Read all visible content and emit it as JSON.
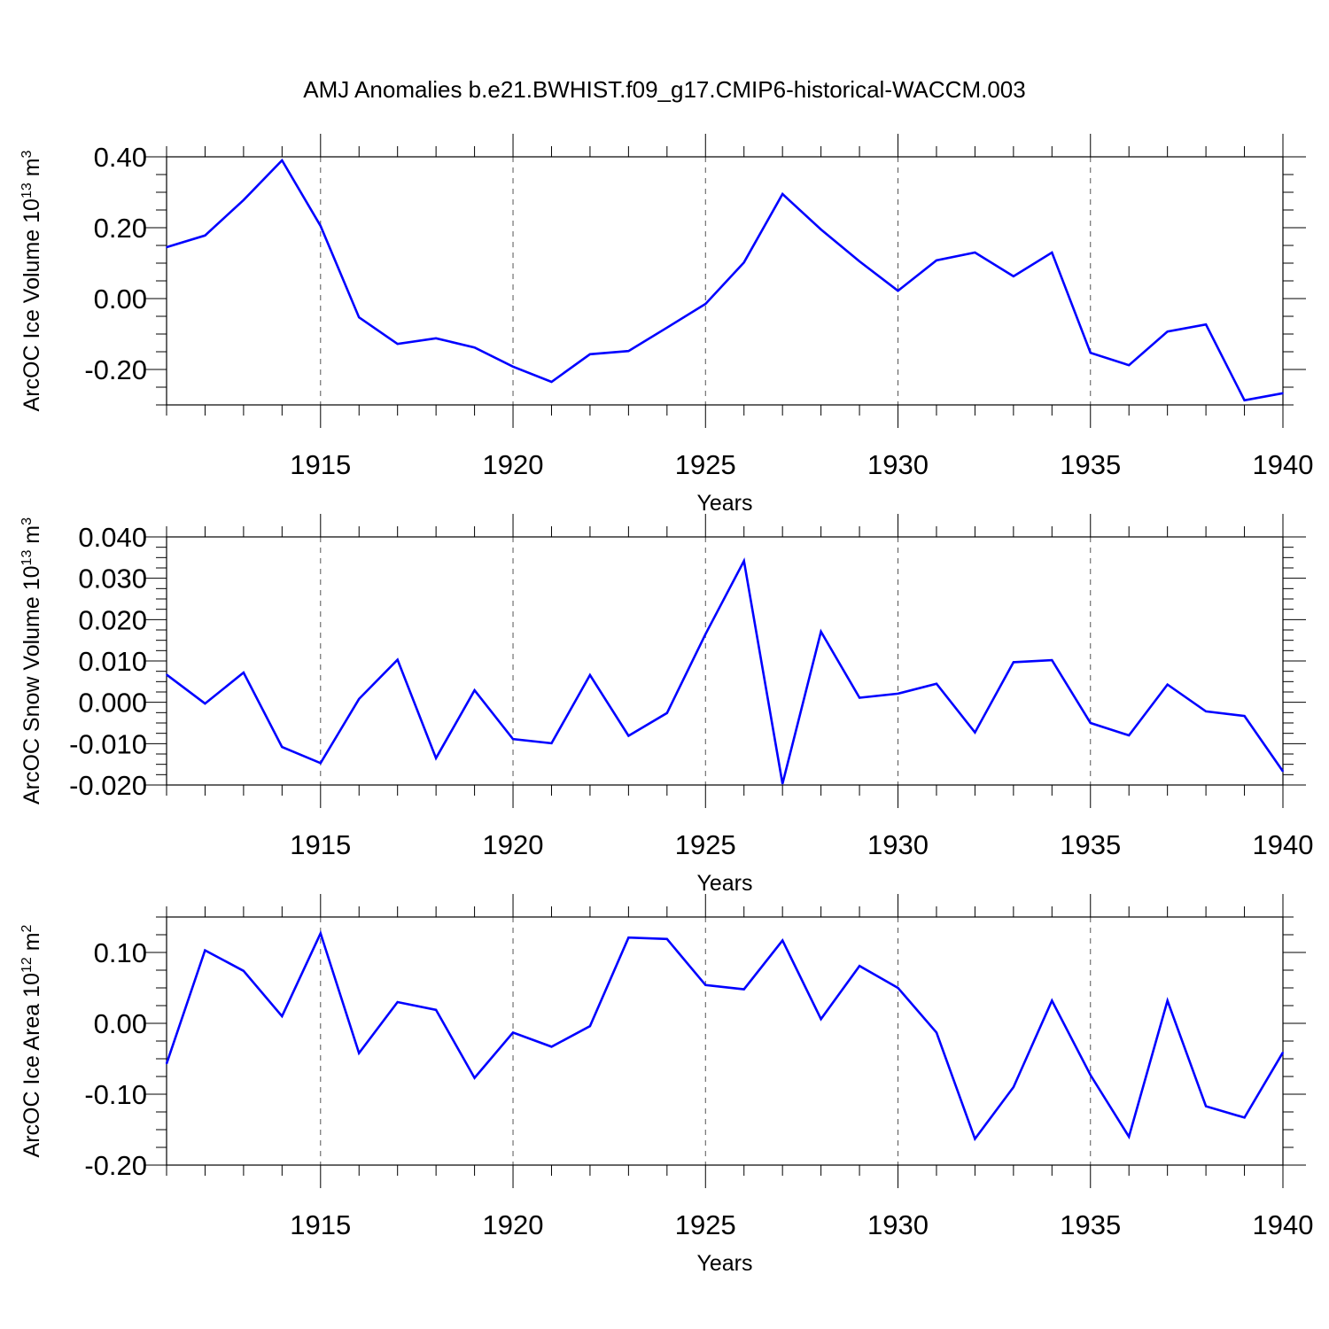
{
  "title": "AMJ Anomalies b.e21.BWHIST.f09_g17.CMIP6-historical-WACCM.003",
  "line_color": "#0000ff",
  "chart_data": [
    {
      "type": "line",
      "ylabel": "ArcOC Ice Volume",
      "yunit_base": "10",
      "yunit_exp": "13",
      "yunit_base_unit": " m",
      "yunit_unit_exp": "3",
      "xlabel": "Years",
      "xlim": [
        1911,
        1940
      ],
      "ylim": [
        -0.3,
        0.4
      ],
      "xticks": [
        1915,
        1920,
        1925,
        1930,
        1935,
        1940
      ],
      "yticks": [
        0.4,
        0.2,
        0.0,
        -0.2
      ],
      "ytick_labels": [
        "0.40",
        "0.20",
        "0.00",
        "-0.20"
      ],
      "x": [
        1911,
        1912,
        1913,
        1914,
        1915,
        1916,
        1917,
        1918,
        1919,
        1920,
        1921,
        1922,
        1923,
        1924,
        1925,
        1926,
        1927,
        1928,
        1929,
        1930,
        1931,
        1932,
        1933,
        1934,
        1935,
        1936,
        1937,
        1938,
        1939,
        1940
      ],
      "values": [
        0.145,
        0.178,
        0.278,
        0.39,
        0.205,
        -0.053,
        -0.128,
        -0.112,
        -0.138,
        -0.192,
        -0.235,
        -0.157,
        -0.148,
        -0.082,
        -0.015,
        0.102,
        0.295,
        0.195,
        0.105,
        0.022,
        0.108,
        0.13,
        0.063,
        0.13,
        -0.153,
        -0.188,
        -0.093,
        -0.073,
        -0.287,
        -0.267
      ]
    },
    {
      "type": "line",
      "ylabel": "ArcOC Snow Volume",
      "yunit_base": "10",
      "yunit_exp": "13",
      "yunit_base_unit": " m",
      "yunit_unit_exp": "3",
      "xlabel": "Years",
      "xlim": [
        1911,
        1940
      ],
      "ylim": [
        -0.02,
        0.04
      ],
      "xticks": [
        1915,
        1920,
        1925,
        1930,
        1935,
        1940
      ],
      "yticks": [
        0.04,
        0.03,
        0.02,
        0.01,
        0.0,
        -0.01,
        -0.02
      ],
      "ytick_labels": [
        "0.040",
        "0.030",
        "0.020",
        "0.010",
        "0.000",
        "-0.010",
        "-0.020"
      ],
      "x": [
        1911,
        1912,
        1913,
        1914,
        1915,
        1916,
        1917,
        1918,
        1919,
        1920,
        1921,
        1922,
        1923,
        1924,
        1925,
        1926,
        1927,
        1928,
        1929,
        1930,
        1931,
        1932,
        1933,
        1934,
        1935,
        1936,
        1937,
        1938,
        1939,
        1940
      ],
      "values": [
        0.0067,
        -0.0003,
        0.0072,
        -0.0108,
        -0.0147,
        0.0008,
        0.0103,
        -0.0135,
        0.0029,
        -0.0089,
        -0.0099,
        0.0066,
        -0.0081,
        -0.0026,
        0.0165,
        0.0342,
        -0.0197,
        0.0171,
        0.0011,
        0.0021,
        0.0045,
        -0.0073,
        0.0097,
        0.0102,
        -0.005,
        -0.008,
        0.0043,
        -0.0022,
        -0.0033,
        -0.0167
      ]
    },
    {
      "type": "line",
      "ylabel": "ArcOC Ice Area",
      "yunit_base": "10",
      "yunit_exp": "12",
      "yunit_base_unit": " m",
      "yunit_unit_exp": "2",
      "xlabel": "Years",
      "xlim": [
        1911,
        1940
      ],
      "ylim": [
        -0.2,
        0.15
      ],
      "xticks": [
        1915,
        1920,
        1925,
        1930,
        1935,
        1940
      ],
      "yticks": [
        0.1,
        0.0,
        -0.1,
        -0.2
      ],
      "ytick_labels": [
        "0.10",
        "0.00",
        "-0.10",
        "-0.20"
      ],
      "x": [
        1911,
        1912,
        1913,
        1914,
        1915,
        1916,
        1917,
        1918,
        1919,
        1920,
        1921,
        1922,
        1923,
        1924,
        1925,
        1926,
        1927,
        1928,
        1929,
        1930,
        1931,
        1932,
        1933,
        1934,
        1935,
        1936,
        1937,
        1938,
        1939,
        1940
      ],
      "values": [
        -0.057,
        0.103,
        0.074,
        0.01,
        0.127,
        -0.042,
        0.03,
        0.019,
        -0.077,
        -0.013,
        -0.033,
        -0.004,
        0.121,
        0.119,
        0.054,
        0.048,
        0.117,
        0.006,
        0.081,
        0.05,
        -0.013,
        -0.163,
        -0.09,
        0.032,
        -0.073,
        -0.16,
        0.032,
        -0.117,
        -0.133,
        -0.041
      ]
    }
  ]
}
